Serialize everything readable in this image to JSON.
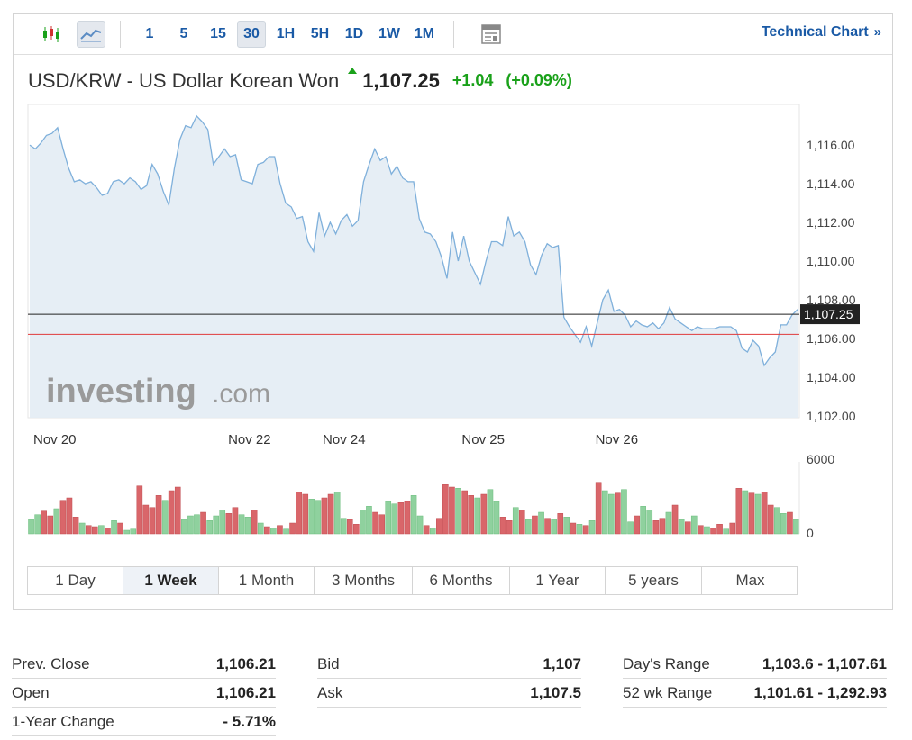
{
  "toolbar": {
    "intervals": [
      "1",
      "5",
      "15",
      "30",
      "1H",
      "5H",
      "1D",
      "1W",
      "1M"
    ],
    "active_interval": "30",
    "technical_chart": "Technical Chart",
    "technical_chart_chevron": "»",
    "icons": [
      "candlestick-icon",
      "line-chart-icon",
      "table-view-icon"
    ]
  },
  "header": {
    "pair_name": "USD/KRW - US Dollar Korean Won",
    "price": "1,107.25",
    "change": "+1.04",
    "change_pct": "(+0.09%)"
  },
  "colors": {
    "accent": "#1a5aa6",
    "up": "#1aa11a",
    "line": "#7fb0db",
    "area": "#e3ecf4",
    "prev_close_line": "#e03a3a",
    "volume_up": "#8fd19e",
    "volume_down": "#d9666a"
  },
  "watermark": "investing.com",
  "chart_data": {
    "type": "line",
    "x_tick_labels": [
      "Nov 20",
      "Nov 22",
      "Nov 24",
      "Nov 25",
      "Nov 26"
    ],
    "y_tick_labels": [
      "1,116.00",
      "1,114.00",
      "1,112.00",
      "1,110.00",
      "1,108.00",
      "1,106.00",
      "1,104.00",
      "1,102.00"
    ],
    "ylim": [
      1101.9,
      1118.1
    ],
    "current_price_label": "1,107.25",
    "current_price": 1107.25,
    "prev_close_line": 1106.21,
    "series": [
      {
        "values": [
          1116.0,
          1115.8,
          1116.1,
          1116.5,
          1116.6,
          1116.9,
          1115.8,
          1114.8,
          1114.1,
          1114.2,
          1114.0,
          1114.1,
          1113.8,
          1113.4,
          1113.5,
          1114.1,
          1114.2,
          1114.0,
          1114.3,
          1114.1,
          1113.7,
          1113.9,
          1115.0,
          1114.5,
          1113.6,
          1112.9,
          1114.8,
          1116.3,
          1117.0,
          1116.9,
          1117.5,
          1117.2,
          1116.8,
          1115.0,
          1115.4,
          1115.8,
          1115.4,
          1115.5,
          1114.2,
          1114.1,
          1114.0,
          1115.0,
          1115.1,
          1115.4,
          1115.4,
          1114.0,
          1113.0,
          1112.8,
          1112.2,
          1112.3,
          1111.0,
          1110.5,
          1112.5,
          1111.3,
          1112.0,
          1111.4,
          1112.1,
          1112.4,
          1111.8,
          1112.1,
          1114.1,
          1115.0,
          1115.8,
          1115.2,
          1115.4,
          1114.5,
          1114.9,
          1114.3,
          1114.1,
          1114.1,
          1112.2,
          1111.5,
          1111.4,
          1111.0,
          1110.2,
          1109.1,
          1111.5,
          1110.0,
          1111.3,
          1110.0,
          1109.4,
          1108.8,
          1110.0,
          1111.0,
          1111.0,
          1110.8,
          1112.3,
          1111.3,
          1111.5,
          1111.0,
          1109.8,
          1109.3,
          1110.3,
          1110.9,
          1110.7,
          1110.8,
          1107.1,
          1106.6,
          1106.2,
          1105.8,
          1106.6,
          1105.6,
          1106.8,
          1108.0,
          1108.5,
          1107.4,
          1107.5,
          1107.2,
          1106.6,
          1106.9,
          1106.7,
          1106.6,
          1106.8,
          1106.5,
          1106.8,
          1107.6,
          1107.0,
          1106.8,
          1106.6,
          1106.4,
          1106.6,
          1106.5,
          1106.5,
          1106.5,
          1106.6,
          1106.6,
          1106.6,
          1106.4,
          1105.5,
          1105.3,
          1105.9,
          1105.6,
          1104.6,
          1105.0,
          1105.3,
          1106.7,
          1106.7,
          1107.2,
          1107.5
        ]
      }
    ],
    "volume": {
      "ylim": [
        0,
        6000
      ],
      "tick_labels": [
        "6000",
        "0"
      ],
      "bars": [
        {
          "v": 1200,
          "up": true
        },
        {
          "v": 1600,
          "up": true
        },
        {
          "v": 1900,
          "up": false
        },
        {
          "v": 1500,
          "up": false
        },
        {
          "v": 2100,
          "up": true
        },
        {
          "v": 2800,
          "up": false
        },
        {
          "v": 3000,
          "up": false
        },
        {
          "v": 1400,
          "up": false
        },
        {
          "v": 900,
          "up": true
        },
        {
          "v": 700,
          "up": false
        },
        {
          "v": 600,
          "up": false
        },
        {
          "v": 700,
          "up": true
        },
        {
          "v": 500,
          "up": false
        },
        {
          "v": 1100,
          "up": true
        },
        {
          "v": 900,
          "up": false
        },
        {
          "v": 300,
          "up": true
        },
        {
          "v": 400,
          "up": true
        },
        {
          "v": 4000,
          "up": false
        },
        {
          "v": 2400,
          "up": false
        },
        {
          "v": 2200,
          "up": false
        },
        {
          "v": 3200,
          "up": false
        },
        {
          "v": 2800,
          "up": true
        },
        {
          "v": 3600,
          "up": false
        },
        {
          "v": 3900,
          "up": false
        },
        {
          "v": 1200,
          "up": true
        },
        {
          "v": 1500,
          "up": true
        },
        {
          "v": 1600,
          "up": true
        },
        {
          "v": 1800,
          "up": false
        },
        {
          "v": 1100,
          "up": true
        },
        {
          "v": 1500,
          "up": true
        },
        {
          "v": 2000,
          "up": true
        },
        {
          "v": 1700,
          "up": false
        },
        {
          "v": 2200,
          "up": false
        },
        {
          "v": 1600,
          "up": true
        },
        {
          "v": 1400,
          "up": true
        },
        {
          "v": 2000,
          "up": false
        },
        {
          "v": 900,
          "up": true
        },
        {
          "v": 600,
          "up": false
        },
        {
          "v": 500,
          "up": true
        },
        {
          "v": 700,
          "up": false
        },
        {
          "v": 400,
          "up": true
        },
        {
          "v": 900,
          "up": false
        },
        {
          "v": 3500,
          "up": false
        },
        {
          "v": 3300,
          "up": false
        },
        {
          "v": 2900,
          "up": true
        },
        {
          "v": 2800,
          "up": true
        },
        {
          "v": 3000,
          "up": false
        },
        {
          "v": 3300,
          "up": false
        },
        {
          "v": 3500,
          "up": true
        },
        {
          "v": 1300,
          "up": true
        },
        {
          "v": 1200,
          "up": false
        },
        {
          "v": 800,
          "up": false
        },
        {
          "v": 2000,
          "up": true
        },
        {
          "v": 2300,
          "up": true
        },
        {
          "v": 1800,
          "up": false
        },
        {
          "v": 1600,
          "up": false
        },
        {
          "v": 2700,
          "up": true
        },
        {
          "v": 2500,
          "up": true
        },
        {
          "v": 2600,
          "up": false
        },
        {
          "v": 2700,
          "up": false
        },
        {
          "v": 3200,
          "up": true
        },
        {
          "v": 1500,
          "up": true
        },
        {
          "v": 700,
          "up": false
        },
        {
          "v": 500,
          "up": true
        },
        {
          "v": 1300,
          "up": false
        },
        {
          "v": 4100,
          "up": false
        },
        {
          "v": 3900,
          "up": false
        },
        {
          "v": 3800,
          "up": true
        },
        {
          "v": 3600,
          "up": false
        },
        {
          "v": 3200,
          "up": false
        },
        {
          "v": 3000,
          "up": true
        },
        {
          "v": 3300,
          "up": false
        },
        {
          "v": 3700,
          "up": true
        },
        {
          "v": 2700,
          "up": true
        },
        {
          "v": 1400,
          "up": false
        },
        {
          "v": 1100,
          "up": false
        },
        {
          "v": 2200,
          "up": true
        },
        {
          "v": 2000,
          "up": false
        },
        {
          "v": 1200,
          "up": true
        },
        {
          "v": 1500,
          "up": false
        },
        {
          "v": 1800,
          "up": true
        },
        {
          "v": 1300,
          "up": false
        },
        {
          "v": 1200,
          "up": true
        },
        {
          "v": 1700,
          "up": false
        },
        {
          "v": 1400,
          "up": true
        },
        {
          "v": 900,
          "up": false
        },
        {
          "v": 800,
          "up": true
        },
        {
          "v": 700,
          "up": false
        },
        {
          "v": 1100,
          "up": true
        },
        {
          "v": 4300,
          "up": false
        },
        {
          "v": 3600,
          "up": true
        },
        {
          "v": 3300,
          "up": true
        },
        {
          "v": 3400,
          "up": false
        },
        {
          "v": 3700,
          "up": true
        },
        {
          "v": 1000,
          "up": true
        },
        {
          "v": 1500,
          "up": false
        },
        {
          "v": 2300,
          "up": true
        },
        {
          "v": 2000,
          "up": true
        },
        {
          "v": 1100,
          "up": false
        },
        {
          "v": 1300,
          "up": false
        },
        {
          "v": 1800,
          "up": true
        },
        {
          "v": 2400,
          "up": false
        },
        {
          "v": 1200,
          "up": true
        },
        {
          "v": 1000,
          "up": false
        },
        {
          "v": 1500,
          "up": true
        },
        {
          "v": 700,
          "up": false
        },
        {
          "v": 600,
          "up": true
        },
        {
          "v": 500,
          "up": false
        },
        {
          "v": 800,
          "up": false
        },
        {
          "v": 400,
          "up": true
        },
        {
          "v": 900,
          "up": false
        },
        {
          "v": 3800,
          "up": false
        },
        {
          "v": 3600,
          "up": true
        },
        {
          "v": 3400,
          "up": false
        },
        {
          "v": 3300,
          "up": true
        },
        {
          "v": 3500,
          "up": false
        },
        {
          "v": 2400,
          "up": false
        },
        {
          "v": 2200,
          "up": true
        },
        {
          "v": 1700,
          "up": true
        },
        {
          "v": 1800,
          "up": false
        },
        {
          "v": 1200,
          "up": true
        }
      ]
    }
  },
  "ranges": {
    "items": [
      "1 Day",
      "1 Week",
      "1 Month",
      "3 Months",
      "6 Months",
      "1 Year",
      "5 years",
      "Max"
    ],
    "active": "1 Week"
  },
  "stats": {
    "col1": [
      {
        "label": "Prev. Close",
        "value": "1,106.21"
      },
      {
        "label": "Open",
        "value": "1,106.21"
      },
      {
        "label": "1-Year Change",
        "value": "- 5.71%"
      }
    ],
    "col2": [
      {
        "label": "Bid",
        "value": "1,107"
      },
      {
        "label": "Ask",
        "value": "1,107.5"
      }
    ],
    "col3": [
      {
        "label": "Day's Range",
        "value": "1,103.6 - 1,107.61"
      },
      {
        "label": "52 wk Range",
        "value": "1,101.61 - 1,292.93"
      }
    ]
  }
}
